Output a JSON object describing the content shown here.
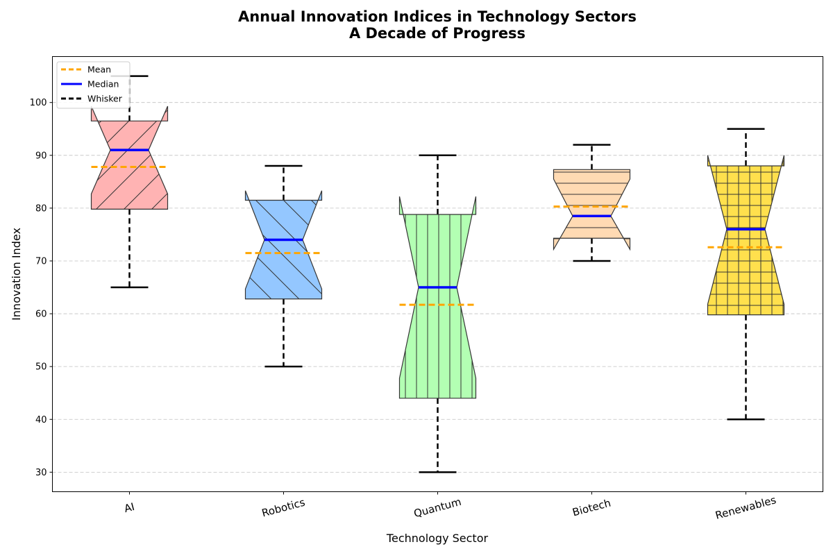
{
  "chart_data": {
    "type": "box",
    "title_lines": [
      "Annual Innovation Indices in Technology Sectors",
      "A Decade of Progress"
    ],
    "xlabel": "Technology Sector",
    "ylabel": "Innovation Index",
    "ylim": [
      26.3,
      108.7
    ],
    "yticks": [
      30,
      40,
      50,
      60,
      70,
      80,
      90,
      100
    ],
    "grid": "horizontal dashed",
    "notched": true,
    "legend": {
      "placement": "top-left",
      "entries": [
        {
          "label": "Mean",
          "color": "#ffa500",
          "style": "dashed"
        },
        {
          "label": "Median",
          "color": "#0000ff",
          "style": "solid"
        },
        {
          "label": "Whisker",
          "color": "#000000",
          "style": "dashed"
        }
      ]
    },
    "categories": [
      "AI",
      "Robotics",
      "Quantum",
      "Biotech",
      "Renewables"
    ],
    "boxes": [
      {
        "name": "AI",
        "whisker_low": 65,
        "q1": 79.8,
        "median": 91,
        "q3": 96.5,
        "whisker_high": 105,
        "notch_low": 82.7,
        "notch_high": 99.3,
        "mean": 87.8,
        "fill": "#ffb3b3",
        "hatch": "diagonal-forward"
      },
      {
        "name": "Robotics",
        "whisker_low": 50,
        "q1": 62.8,
        "median": 74,
        "q3": 81.5,
        "whisker_high": 88,
        "notch_low": 64.7,
        "notch_high": 83.3,
        "mean": 71.5,
        "fill": "#94c7ff",
        "hatch": "diagonal-back"
      },
      {
        "name": "Quantum",
        "whisker_low": 30,
        "q1": 44,
        "median": 65,
        "q3": 78.8,
        "whisker_high": 90,
        "notch_low": 47.8,
        "notch_high": 82.2,
        "mean": 61.7,
        "fill": "#b3ffb3",
        "hatch": "vertical"
      },
      {
        "name": "Biotech",
        "whisker_low": 70,
        "q1": 74.3,
        "median": 78.5,
        "q3": 87.3,
        "whisker_high": 92,
        "notch_low": 72.2,
        "notch_high": 85.5,
        "mean": 80.3,
        "fill": "#ffdab3",
        "hatch": "horizontal"
      },
      {
        "name": "Renewables",
        "whisker_low": 40,
        "q1": 59.8,
        "median": 76,
        "q3": 88,
        "whisker_high": 95,
        "notch_low": 61.8,
        "notch_high": 90,
        "mean": 72.6,
        "fill": "#ffe04d",
        "hatch": "grid"
      }
    ],
    "colors": {
      "mean": "#ffa500",
      "median": "#0000ff",
      "whisker": "#000000",
      "grid": "#c0c0c0",
      "box_edge": "#333333"
    }
  }
}
